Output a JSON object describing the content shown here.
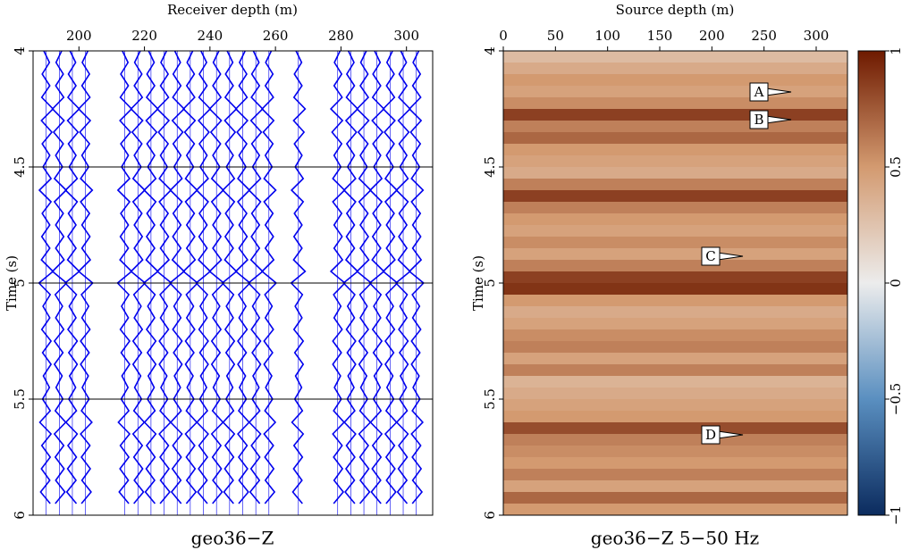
{
  "chart_data": [
    {
      "type": "wiggle",
      "title": "geo36−Z",
      "xlabel": "Receiver depth (m)",
      "ylabel": "Time (s)",
      "xlim": [
        186,
        308
      ],
      "xticks": [
        200,
        220,
        240,
        260,
        280,
        300
      ],
      "ylim": [
        6,
        4
      ],
      "yticks": [
        4,
        4.5,
        5,
        5.5,
        6
      ],
      "grid": true,
      "color": "#0000ee",
      "traces": [
        190,
        194,
        198,
        202,
        214,
        218,
        222,
        226,
        230,
        234,
        238,
        242,
        246,
        250,
        254,
        258,
        267,
        279,
        283,
        287,
        291,
        295,
        299,
        303
      ]
    },
    {
      "type": "heatmap",
      "title": "geo36−Z 5−50 Hz",
      "xlabel": "Source depth (m)",
      "ylabel": "Time (s)",
      "xlim": [
        0,
        330
      ],
      "xticks": [
        0,
        50,
        100,
        150,
        200,
        250,
        300
      ],
      "ylim": [
        6,
        4
      ],
      "yticks": [
        4,
        4.5,
        5,
        5.5,
        6
      ],
      "y": [
        4.0,
        4.05,
        4.1,
        4.15,
        4.2,
        4.25,
        4.3,
        4.35,
        4.4,
        4.45,
        4.5,
        4.55,
        4.6,
        4.65,
        4.7,
        4.75,
        4.8,
        4.85,
        4.9,
        4.95,
        5.0,
        5.05,
        5.1,
        5.15,
        5.2,
        5.25,
        5.3,
        5.35,
        5.4,
        5.45,
        5.5,
        5.55,
        5.6,
        5.65,
        5.7,
        5.75,
        5.8,
        5.85,
        5.9,
        5.95
      ],
      "values": [
        0.3,
        0.4,
        0.5,
        0.45,
        0.55,
        0.85,
        0.6,
        0.7,
        0.5,
        0.45,
        0.4,
        0.6,
        0.85,
        0.6,
        0.5,
        0.45,
        0.55,
        0.45,
        0.6,
        0.85,
        0.9,
        0.5,
        0.4,
        0.45,
        0.55,
        0.6,
        0.45,
        0.6,
        0.35,
        0.4,
        0.45,
        0.5,
        0.8,
        0.6,
        0.55,
        0.5,
        0.6,
        0.45,
        0.7,
        0.5
      ],
      "annotations": [
        "A",
        "B",
        "C",
        "D"
      ],
      "colorbar": {
        "zlim": [
          -1,
          1
        ],
        "ticks": [
          1,
          0.5,
          0,
          {
            "value": -0.5,
            "label": "−0.5"
          },
          {
            "value": -1,
            "label": "−1"
          }
        ],
        "colors": [
          "#0b2b5e",
          "#5a8fc0",
          "#ececec",
          "#d39a70",
          "#6e1a00"
        ]
      }
    }
  ]
}
